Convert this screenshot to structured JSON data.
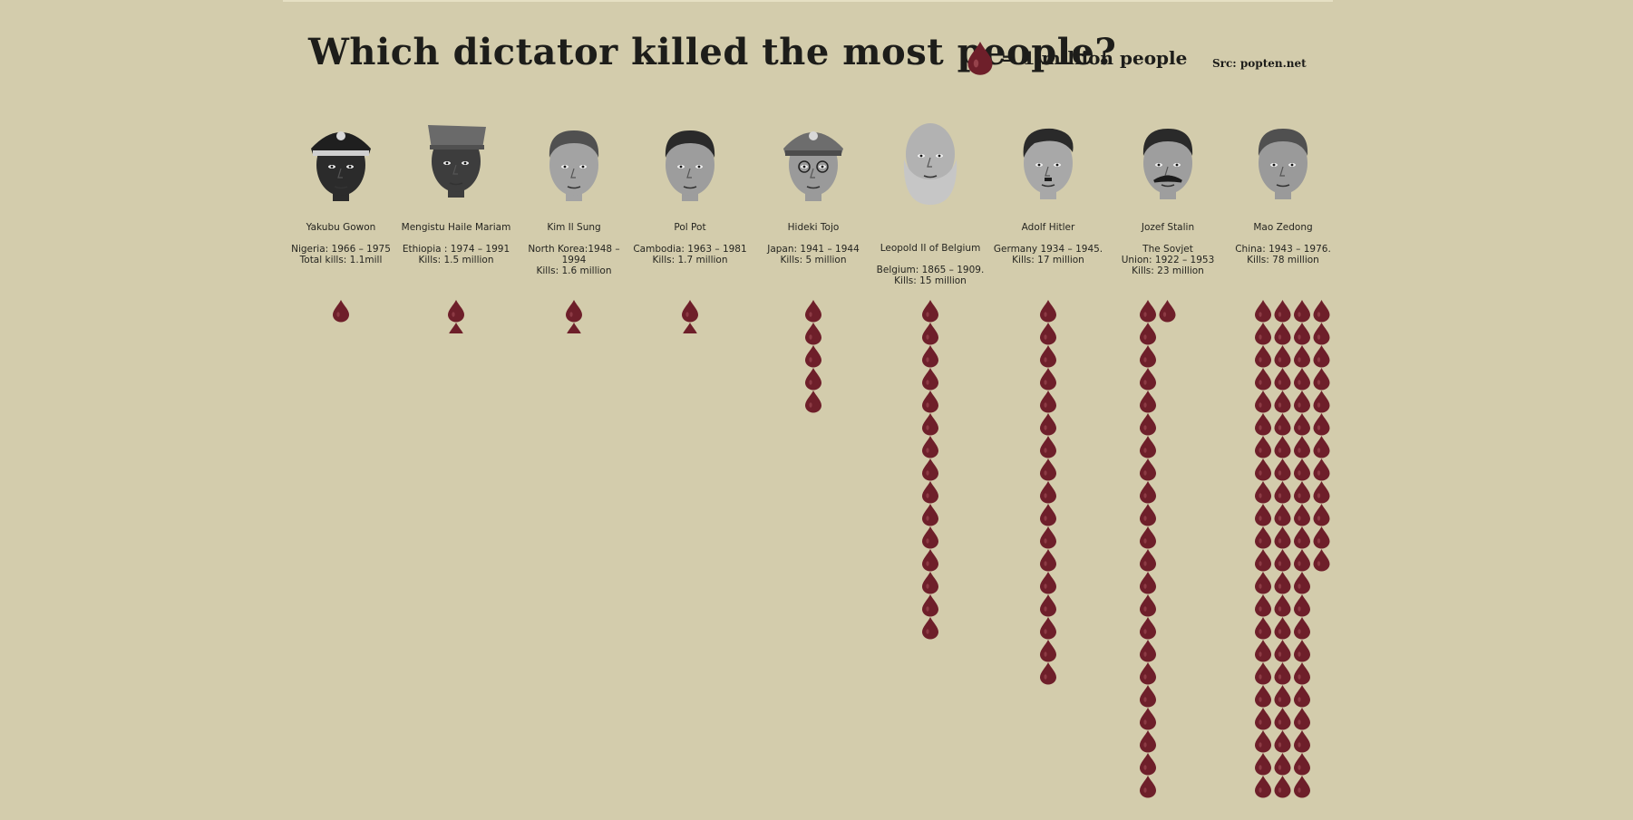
{
  "title": "Which dictator killed the most people?",
  "legend": {
    "unit_text": "= 1 million people",
    "icon": "blood-drop-icon"
  },
  "source": "Src: popten.net",
  "colors": {
    "background": "#d3ccac",
    "drop": "#6e1f2a",
    "text": "#1d1d1a"
  },
  "chart_data": {
    "type": "pictograph",
    "unit": "1 million people",
    "title": "Which dictator killed the most people?",
    "series": [
      {
        "name": "Yakubu Gowon",
        "info": "Nigeria: 1966 – 1975\nTotal kills: 1.1mill",
        "value": 1.1
      },
      {
        "name": "Mengistu Haile Mariam",
        "info": "Ethiopia : 1974 – 1991\nKills: 1.5 million",
        "value": 1.5
      },
      {
        "name": "Kim Il Sung",
        "info": "North Korea:1948 –1994\nKills: 1.6 million",
        "value": 1.6
      },
      {
        "name": "Pol Pot",
        "info": "Cambodia: 1963 – 1981\nKills: 1.7 million",
        "value": 1.7
      },
      {
        "name": "Hideki Tojo",
        "info": "Japan: 1941 – 1944\nKills: 5 million",
        "value": 5
      },
      {
        "name": "Leopold II of Belgium",
        "info": "Belgium: 1865 – 1909.\nKills: 15 million",
        "value": 15
      },
      {
        "name": "Adolf Hitler",
        "info": "Germany 1934 – 1945.\nKills: 17 million",
        "value": 17
      },
      {
        "name": "Jozef Stalin",
        "info": "The Sovjet\nUnion: 1922 – 1953\nKills: 23 million",
        "value": 23
      },
      {
        "name": "Mao Zedong",
        "info": "China: 1943 – 1976.\nKills: 78 million",
        "value": 78
      }
    ]
  }
}
